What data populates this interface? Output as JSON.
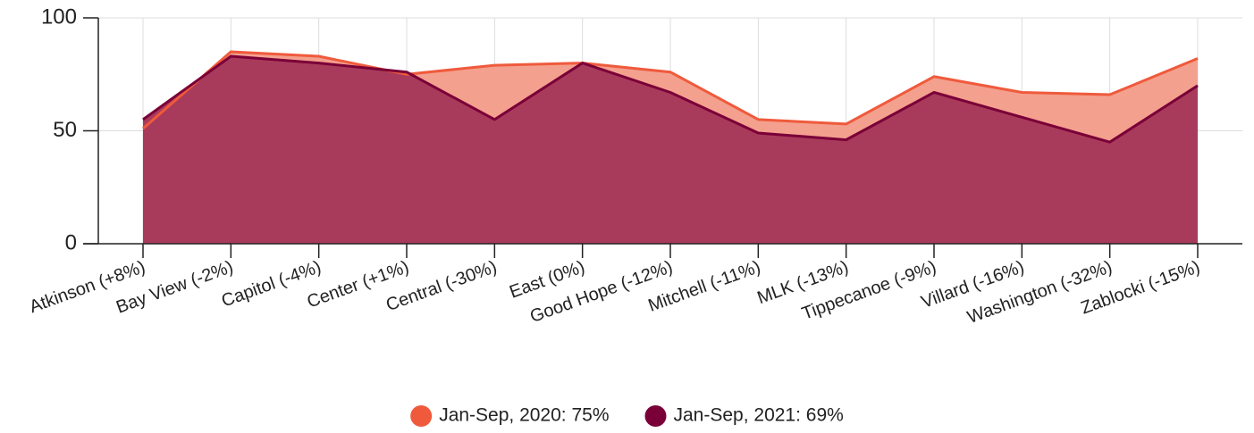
{
  "chart_data": {
    "type": "area",
    "categories": [
      "Atkinson (+8%)",
      "Bay View (-2%)",
      "Capitol (-4%)",
      "Center (+1%)",
      "Central (-30%)",
      "East (0%)",
      "Good Hope (-12%)",
      "Mitchell (-11%)",
      "MLK (-13%)",
      "Tippecanoe (-9%)",
      "Villard (-16%)",
      "Washington (-32%)",
      "Zablocki (-15%)"
    ],
    "series": [
      {
        "name": "Jan-Sep, 2020: 75%",
        "color": "#ef5a3c",
        "fill": "#f4a08e",
        "values": [
          51,
          85,
          83,
          75,
          79,
          80,
          76,
          55,
          53,
          74,
          67,
          66,
          82
        ]
      },
      {
        "name": "Jan-Sep, 2021: 69%",
        "color": "#7a0038",
        "fill": "#a83b5b",
        "values": [
          55,
          83,
          80,
          76,
          55,
          80,
          67,
          49,
          46,
          67,
          56,
          45,
          70
        ]
      }
    ],
    "ylim": [
      0,
      100
    ],
    "yticks": [
      0,
      50,
      100
    ],
    "grid": true,
    "legend": "bottom"
  }
}
